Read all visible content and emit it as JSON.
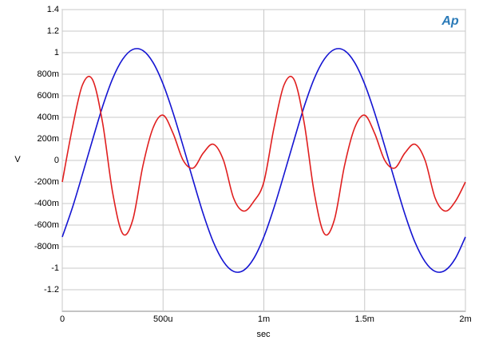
{
  "chart_data": {
    "type": "line",
    "logo": "Ap",
    "xlabel": "sec",
    "ylabel": "V",
    "x": [
      0,
      5e-05,
      0.0001,
      0.00015,
      0.0002,
      0.00025,
      0.0003,
      0.00035,
      0.0004,
      0.00045,
      0.0005,
      0.00055,
      0.0006,
      0.00065,
      0.0007,
      0.00075,
      0.0008,
      0.00085,
      0.0009,
      0.00095,
      0.001,
      0.00105,
      0.0011,
      0.00115,
      0.0012,
      0.00125,
      0.0013,
      0.00135,
      0.0014,
      0.00145,
      0.0015,
      0.00155,
      0.0016,
      0.00165,
      0.0017,
      0.00175,
      0.0018,
      0.00185,
      0.0019,
      0.00195,
      0.002
    ],
    "series": [
      {
        "color": "#1414d2",
        "values": [
          -0.71,
          -0.44,
          -0.13,
          0.19,
          0.5,
          0.76,
          0.94,
          1.03,
          1.02,
          0.91,
          0.71,
          0.44,
          0.13,
          -0.19,
          -0.5,
          -0.76,
          -0.94,
          -1.03,
          -1.02,
          -0.91,
          -0.71,
          -0.44,
          -0.13,
          0.19,
          0.5,
          0.76,
          0.94,
          1.03,
          1.02,
          0.91,
          0.71,
          0.44,
          0.13,
          -0.19,
          -0.5,
          -0.76,
          -0.94,
          -1.03,
          -1.02,
          -0.91,
          -0.71
        ]
      },
      {
        "color": "#e01e1e",
        "values": [
          -0.2,
          0.3,
          0.7,
          0.75,
          0.35,
          -0.3,
          -0.68,
          -0.55,
          -0.05,
          0.3,
          0.42,
          0.25,
          0.0,
          -0.07,
          0.07,
          0.15,
          0.0,
          -0.35,
          -0.47,
          -0.38,
          -0.2,
          0.3,
          0.7,
          0.75,
          0.35,
          -0.3,
          -0.68,
          -0.55,
          -0.05,
          0.3,
          0.42,
          0.25,
          0.0,
          -0.07,
          0.07,
          0.15,
          0.0,
          -0.35,
          -0.47,
          -0.38,
          -0.2
        ]
      }
    ],
    "xlim": [
      0,
      0.002
    ],
    "xticks": [
      0,
      {
        "value": 0.0005,
        "label": "500u"
      },
      {
        "value": 0.001,
        "label": "1m"
      },
      {
        "value": 0.0015,
        "label": "1.5m"
      },
      {
        "value": 0.002,
        "label": "2m"
      }
    ],
    "ylim": [
      -1.4,
      1.4
    ],
    "yticks": [
      -1.2,
      {
        "value": -1,
        "label": "-1"
      },
      {
        "value": -0.8,
        "label": "-800m"
      },
      {
        "value": -0.6,
        "label": "-600m"
      },
      {
        "value": -0.4,
        "label": "-400m"
      },
      {
        "value": -0.2,
        "label": "-200m"
      },
      0,
      {
        "value": 0.2,
        "label": "200m"
      },
      {
        "value": 0.4,
        "label": "400m"
      },
      {
        "value": 0.6,
        "label": "600m"
      },
      {
        "value": 0.8,
        "label": "800m"
      },
      1,
      1.2,
      1.4
    ],
    "grid": true
  }
}
